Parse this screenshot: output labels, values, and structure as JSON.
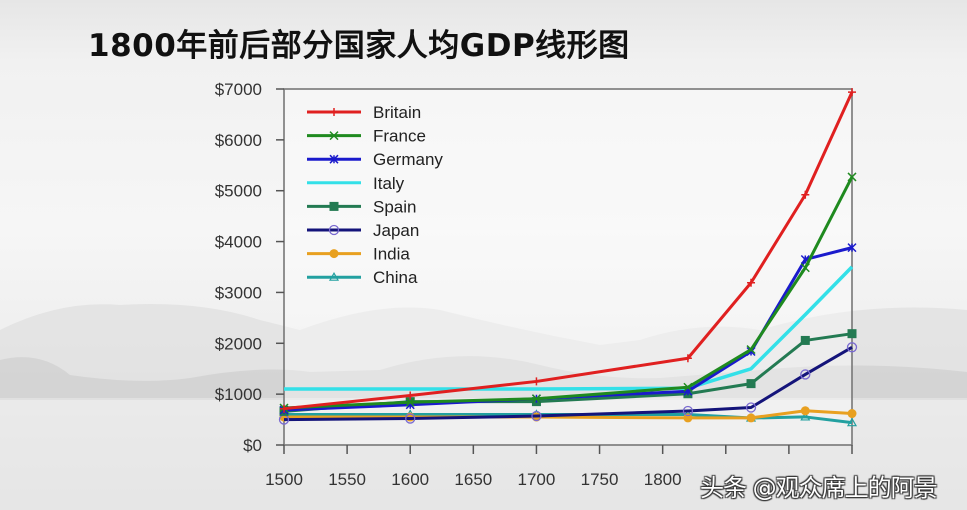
{
  "title": "1800年前后部分国家人均GDP线形图",
  "watermark": "头条 @观众席上的阿景",
  "chart_data": {
    "type": "line",
    "title": "1800年前后部分国家人均GDP线形图",
    "xlabel": "",
    "ylabel": "",
    "x": [
      1500,
      1600,
      1700,
      1820,
      1870,
      1913,
      1950
    ],
    "xlim": [
      1500,
      1950
    ],
    "ylim": [
      0,
      7000
    ],
    "x_ticks": [
      1500,
      1550,
      1600,
      1650,
      1700,
      1750,
      1800,
      1850,
      1900,
      1950
    ],
    "x_tick_labels": [
      "1500",
      "1550",
      "1600",
      "1650",
      "1700",
      "1750",
      "1800",
      "",
      "",
      ""
    ],
    "y_ticks": [
      0,
      1000,
      2000,
      3000,
      4000,
      5000,
      6000,
      7000
    ],
    "y_tick_labels": [
      "$0",
      "$1000",
      "$2000",
      "$3000",
      "$4000",
      "$5000",
      "$6000",
      "$7000"
    ],
    "grid": false,
    "legend_position": "upper left",
    "series": [
      {
        "name": "Britain",
        "color": "#e02020",
        "marker": "plus",
        "values": [
          714,
          974,
          1250,
          1706,
          3190,
          4921,
          6939
        ]
      },
      {
        "name": "France",
        "color": "#1f8a1f",
        "marker": "x",
        "values": [
          727,
          841,
          910,
          1135,
          1876,
          3485,
          5271
        ]
      },
      {
        "name": "Germany",
        "color": "#1a1acc",
        "marker": "star",
        "values": [
          688,
          791,
          910,
          1058,
          1839,
          3648,
          3881
        ]
      },
      {
        "name": "Italy",
        "color": "#33e0e8",
        "marker": "none",
        "values": [
          1100,
          1100,
          1100,
          1117,
          1499,
          2564,
          3502
        ]
      },
      {
        "name": "Spain",
        "color": "#237a52",
        "marker": "square",
        "values": [
          661,
          853,
          853,
          1008,
          1207,
          2056,
          2189
        ]
      },
      {
        "name": "Japan",
        "color": "#14147a",
        "marker": "circle",
        "values": [
          500,
          520,
          570,
          669,
          737,
          1387,
          1921
        ]
      },
      {
        "name": "India",
        "color": "#e8a020",
        "marker": "diamond",
        "values": [
          550,
          550,
          550,
          533,
          533,
          673,
          619
        ]
      },
      {
        "name": "China",
        "color": "#22a0a0",
        "marker": "triangle",
        "values": [
          600,
          600,
          600,
          600,
          530,
          552,
          439
        ]
      }
    ]
  }
}
